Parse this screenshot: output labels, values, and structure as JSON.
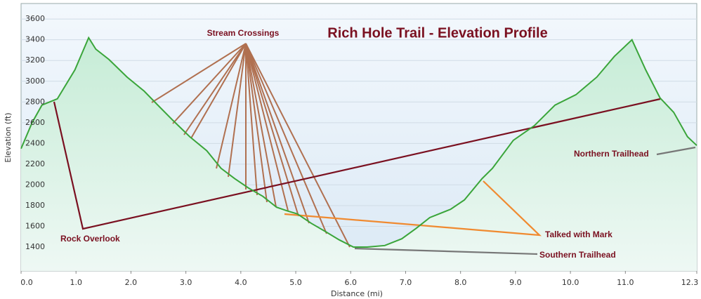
{
  "chart_data": {
    "type": "line",
    "title": "Rich Hole Trail - Elevation Profile",
    "x_label": "Distance  (mi)",
    "y_label": "Elevation (ft)",
    "x": [
      0.0,
      0.2,
      0.38,
      0.66,
      0.98,
      1.23,
      1.36,
      1.6,
      1.93,
      2.24,
      2.47,
      2.75,
      3.07,
      3.38,
      3.64,
      3.89,
      4.14,
      4.4,
      4.65,
      4.84,
      5.03,
      5.28,
      5.54,
      5.79,
      6.05,
      6.3,
      6.62,
      6.93,
      7.19,
      7.44,
      7.82,
      8.07,
      8.39,
      8.58,
      8.96,
      9.34,
      9.72,
      10.1,
      10.48,
      10.8,
      11.12,
      11.37,
      11.63,
      11.88,
      12.13,
      12.3
    ],
    "values": [
      2350,
      2600,
      2770,
      2830,
      3110,
      3420,
      3310,
      3210,
      3040,
      2905,
      2780,
      2630,
      2465,
      2330,
      2160,
      2060,
      1970,
      1890,
      1785,
      1750,
      1720,
      1630,
      1550,
      1470,
      1400,
      1400,
      1415,
      1480,
      1580,
      1685,
      1765,
      1855,
      2060,
      2160,
      2430,
      2570,
      2770,
      2870,
      3040,
      3240,
      3400,
      3110,
      2840,
      2700,
      2465,
      2380
    ],
    "color": "#3aa53a",
    "xlim": [
      0,
      12.3
    ],
    "ylim": [
      1170,
      3750
    ],
    "xticks": [
      {
        "value": 0,
        "label": "0.0"
      },
      {
        "value": 1,
        "label": "1.0"
      },
      {
        "value": 2,
        "label": "2.0"
      },
      {
        "value": 3,
        "label": "3.0"
      },
      {
        "value": 4,
        "label": "4.0"
      },
      {
        "value": 5,
        "label": "5.0"
      },
      {
        "value": 6,
        "label": "6.0"
      },
      {
        "value": 7,
        "label": "7.0"
      },
      {
        "value": 8,
        "label": "8.0"
      },
      {
        "value": 9,
        "label": "9.0"
      },
      {
        "value": 10,
        "label": "10.0"
      },
      {
        "value": 11,
        "label": "11.0"
      },
      12.3
    ],
    "yticks": [
      1400,
      1600,
      1800,
      2000,
      2200,
      2400,
      2600,
      2800,
      3000,
      3200,
      3400,
      3600
    ],
    "grid": true,
    "annotations": [
      "Stream Crossings",
      "Rock Overlook",
      "Talked with Mark",
      "Southern Trailhead",
      "Northern Trailhead"
    ]
  }
}
